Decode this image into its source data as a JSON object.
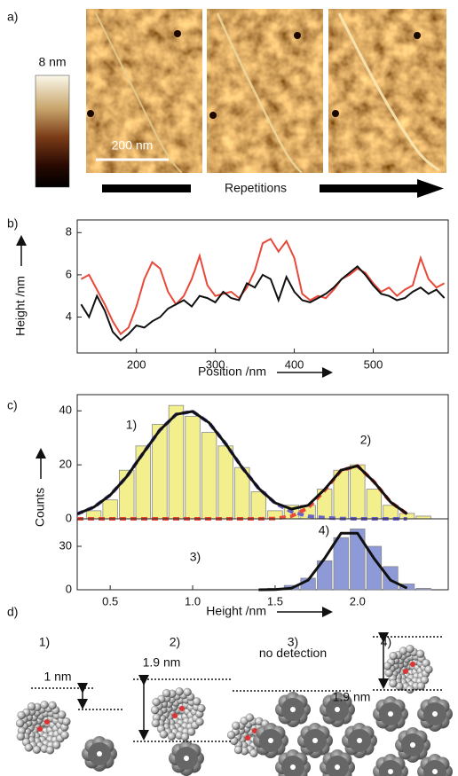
{
  "panel_labels": [
    "a)",
    "b)",
    "c)",
    "d)"
  ],
  "panel_a": {
    "colorbar_label": "8 nm",
    "scale_bar": "200 nm",
    "arrow_label": "Repetitions"
  },
  "chart_data": [
    {
      "type": "line",
      "xlabel": "Position /nm",
      "ylabel": "Height /nm",
      "x": [
        130,
        140,
        150,
        160,
        170,
        180,
        190,
        200,
        210,
        220,
        230,
        240,
        250,
        260,
        270,
        280,
        290,
        300,
        310,
        320,
        330,
        340,
        350,
        360,
        370,
        380,
        390,
        400,
        410,
        420,
        430,
        440,
        450,
        460,
        470,
        480,
        490,
        500,
        510,
        520,
        530,
        540,
        550,
        560,
        570,
        580,
        590
      ],
      "series": [
        {
          "color": "#e8493a",
          "values": [
            5.8,
            6.0,
            5.3,
            4.6,
            3.8,
            3.2,
            3.5,
            4.5,
            5.8,
            6.6,
            6.3,
            5.2,
            4.6,
            5.0,
            5.8,
            6.9,
            5.5,
            5.0,
            5.1,
            5.2,
            4.9,
            5.4,
            6.2,
            7.5,
            7.7,
            7.1,
            7.6,
            6.8,
            5.1,
            4.8,
            5.0,
            4.9,
            5.3,
            5.8,
            6.0,
            6.3,
            6.1,
            5.6,
            5.2,
            5.4,
            5.0,
            5.3,
            5.5,
            6.8,
            5.8,
            5.4,
            5.6
          ]
        },
        {
          "color": "#111111",
          "values": [
            4.6,
            4.0,
            5.0,
            4.3,
            3.3,
            2.9,
            3.2,
            3.6,
            3.5,
            3.8,
            4.0,
            4.4,
            4.6,
            4.8,
            4.5,
            5.0,
            4.9,
            4.7,
            5.2,
            4.9,
            4.8,
            5.6,
            5.4,
            6.0,
            5.8,
            4.8,
            5.9,
            5.2,
            4.8,
            4.7,
            4.9,
            5.1,
            5.4,
            5.8,
            6.1,
            6.4,
            6.0,
            5.5,
            5.1,
            5.0,
            4.8,
            4.9,
            5.2,
            5.4,
            5.1,
            5.3,
            4.9
          ]
        }
      ],
      "xlim": [
        125,
        595
      ],
      "ylim": [
        2.3,
        8.6
      ],
      "xticks": [
        200,
        300,
        400,
        500
      ],
      "yticks": [
        4,
        6,
        8
      ]
    },
    {
      "type": "histogram",
      "ylabel": "Counts",
      "annotations": [
        "1)",
        "2)"
      ],
      "bins": [
        0.35,
        0.45,
        0.55,
        0.65,
        0.75,
        0.85,
        0.95,
        1.05,
        1.15,
        1.25,
        1.35,
        1.45,
        1.55,
        1.65,
        1.75,
        1.85,
        1.95,
        2.05,
        2.15,
        2.25,
        2.35,
        2.45
      ],
      "values": [
        3,
        7,
        18,
        27,
        35,
        42,
        38,
        32,
        27,
        19,
        10,
        3,
        5,
        5,
        11,
        18,
        20,
        11,
        5,
        2,
        1
      ],
      "color": "#f3ef8c",
      "fit_x": [
        0.3,
        0.4,
        0.5,
        0.6,
        0.7,
        0.8,
        0.9,
        1.0,
        1.1,
        1.2,
        1.3,
        1.4,
        1.5,
        1.6,
        1.7,
        1.8,
        1.9,
        2.0,
        2.1,
        2.2,
        2.3
      ],
      "fits": [
        {
          "color": "#6a63c8",
          "dashed": true,
          "values": [
            1.8,
            4.3,
            8.8,
            15.6,
            24.3,
            32.8,
            38.7,
            39.8,
            35.6,
            27.8,
            19.0,
            11.3,
            5.8,
            2.6,
            1.0,
            0.4,
            0.1,
            0,
            0,
            0,
            0
          ]
        },
        {
          "color": "#e8493a",
          "dashed": true,
          "values": [
            0,
            0,
            0,
            0,
            0,
            0,
            0,
            0,
            0,
            0,
            0,
            0,
            0.1,
            1.0,
            4.0,
            10.5,
            17.9,
            19.6,
            13.7,
            6.2,
            1.8
          ]
        },
        {
          "color": "#111111",
          "dashed": false,
          "values": [
            1.8,
            4.3,
            8.8,
            15.6,
            24.3,
            32.8,
            38.7,
            39.8,
            35.6,
            27.8,
            19.0,
            11.3,
            5.9,
            3.6,
            5.0,
            10.9,
            18.0,
            19.6,
            13.7,
            6.2,
            1.8
          ]
        }
      ],
      "xlim": [
        0.3,
        2.55
      ],
      "ylim": [
        0,
        46
      ],
      "yticks": [
        0,
        20,
        40
      ]
    },
    {
      "type": "histogram",
      "xlabel": "Height /nm",
      "annotations": [
        "3)",
        "4)"
      ],
      "bins": [
        1.45,
        1.55,
        1.65,
        1.75,
        1.85,
        1.95,
        2.05,
        2.15,
        2.25,
        2.35,
        2.45
      ],
      "values": [
        1,
        3,
        8,
        20,
        36,
        42,
        30,
        16,
        4,
        1
      ],
      "color": "#8e9ad8",
      "fit_x": [
        1.4,
        1.5,
        1.6,
        1.7,
        1.8,
        1.9,
        2.0,
        2.1,
        2.2,
        2.3
      ],
      "fits": [
        {
          "color": "#111111",
          "dashed": false,
          "values": [
            0,
            0.1,
            1.1,
            6.6,
            21.6,
            39,
            39,
            21.6,
            6.6,
            1.1
          ]
        }
      ],
      "xlim": [
        0.3,
        2.55
      ],
      "ylim": [
        0,
        49
      ],
      "xticks": [
        0.5,
        {
          "value": 1,
          "label": "1.0"
        },
        1.5,
        {
          "value": 2,
          "label": "2.0"
        }
      ],
      "yticks": [
        0,
        30
      ]
    }
  ],
  "panel_d": {
    "items": [
      {
        "label": "1)",
        "dimension": "1 nm"
      },
      {
        "label": "2)",
        "dimension": "1.9 nm"
      },
      {
        "label": "3)",
        "dimension": "no detection"
      },
      {
        "label": "4)",
        "dimension": "1.9 nm"
      }
    ]
  }
}
